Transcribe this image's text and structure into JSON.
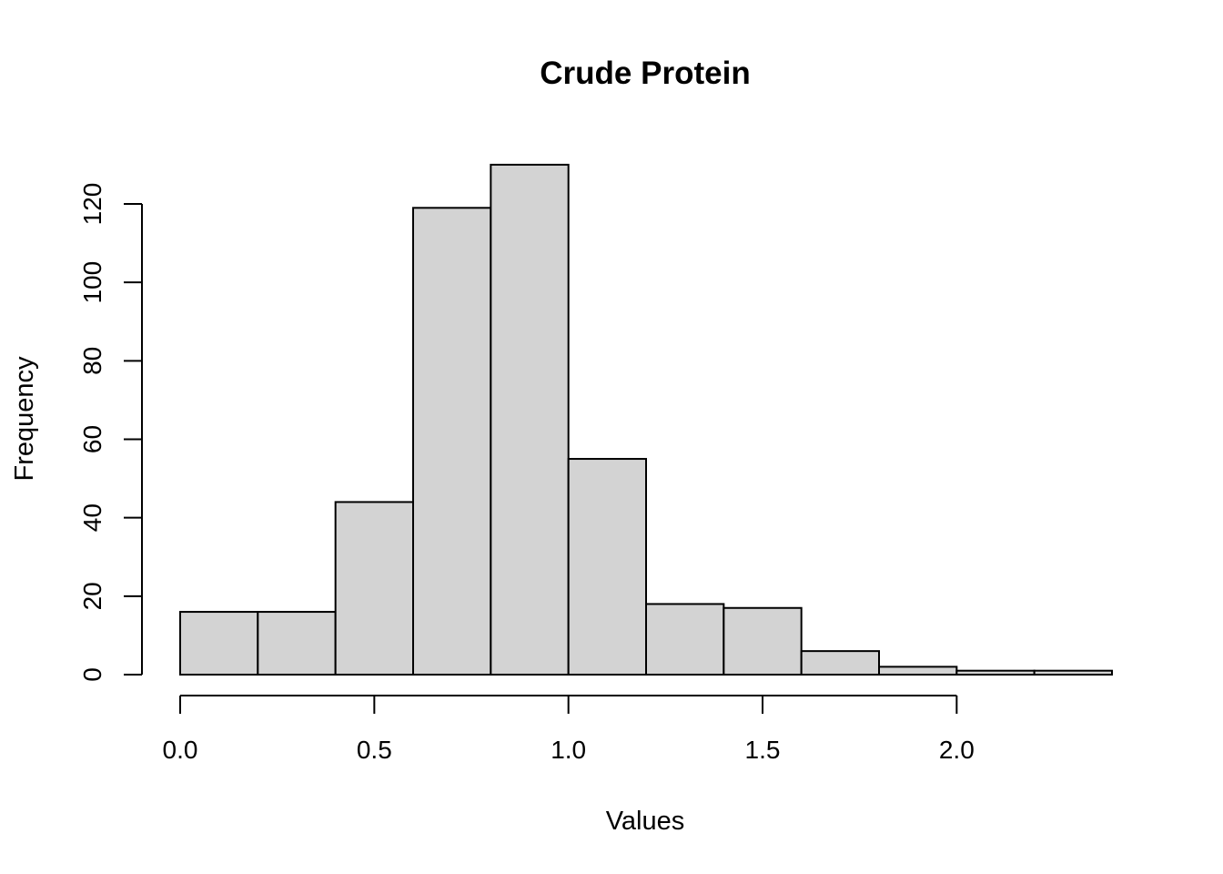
{
  "chart_data": {
    "type": "bar",
    "subtype": "histogram",
    "title": "Crude Protein",
    "xlabel": "Values",
    "ylabel": "Frequency",
    "bin_edges": [
      0.0,
      0.2,
      0.4,
      0.6,
      0.8,
      1.0,
      1.2,
      1.4,
      1.6,
      1.8,
      2.0,
      2.2,
      2.4
    ],
    "values": [
      16,
      16,
      44,
      119,
      130,
      55,
      18,
      17,
      6,
      2,
      1,
      1
    ],
    "xlim": [
      0.0,
      2.4
    ],
    "ylim": [
      0,
      130
    ],
    "x_ticks": [
      0.0,
      0.5,
      1.0,
      1.5,
      2.0
    ],
    "x_tick_labels": [
      "0.0",
      "0.5",
      "1.0",
      "1.5",
      "2.0"
    ],
    "y_ticks": [
      0,
      20,
      40,
      60,
      80,
      100,
      120
    ],
    "y_tick_labels": [
      "0",
      "20",
      "40",
      "60",
      "80",
      "100",
      "120"
    ],
    "grid": false,
    "legend": "none",
    "colors": {
      "bar_fill": "#d3d3d3",
      "bar_edge": "#000000",
      "axis": "#000000",
      "background": "#ffffff"
    }
  }
}
